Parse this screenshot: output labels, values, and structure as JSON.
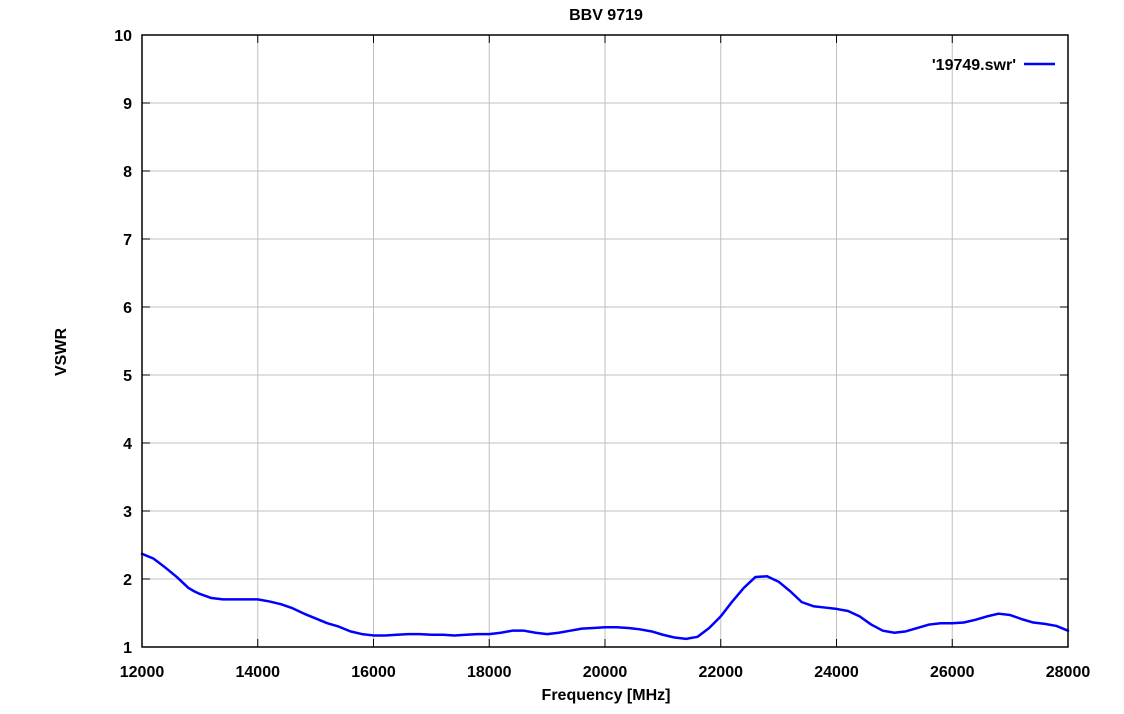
{
  "chart_data": {
    "type": "line",
    "title": "BBV 9719",
    "xlabel": "Frequency [MHz]",
    "ylabel": "VSWR",
    "xlim": [
      12000,
      28000
    ],
    "ylim": [
      1,
      10
    ],
    "x_ticks": [
      12000,
      14000,
      16000,
      18000,
      20000,
      22000,
      24000,
      26000,
      28000
    ],
    "y_ticks": [
      1,
      2,
      3,
      4,
      5,
      6,
      7,
      8,
      9,
      10
    ],
    "x_tick_labels": [
      "12000",
      "14000",
      "16000",
      "18000",
      "20000",
      "22000",
      "24000",
      "26000",
      "28000"
    ],
    "y_tick_labels": [
      "1",
      "2",
      "3",
      "4",
      "5",
      "6",
      "7",
      "8",
      "9",
      "10"
    ],
    "grid": true,
    "legend_position": "top-right",
    "colors": {
      "series": "#0000ff",
      "grid": "#c0c0c0",
      "axis": "#000000"
    },
    "series": [
      {
        "name": "'19749.swr'",
        "x": [
          12000,
          12200,
          12400,
          12600,
          12800,
          12900,
          13000,
          13200,
          13400,
          13600,
          13800,
          14000,
          14200,
          14400,
          14600,
          14800,
          15000,
          15200,
          15400,
          15600,
          15800,
          16000,
          16200,
          16400,
          16600,
          16800,
          17000,
          17200,
          17400,
          17600,
          17800,
          18000,
          18200,
          18400,
          18600,
          18800,
          19000,
          19200,
          19400,
          19600,
          19800,
          20000,
          20200,
          20400,
          20600,
          20800,
          21000,
          21200,
          21400,
          21600,
          21800,
          22000,
          22200,
          22400,
          22600,
          22800,
          23000,
          23200,
          23400,
          23600,
          23800,
          24000,
          24200,
          24400,
          24600,
          24800,
          25000,
          25200,
          25400,
          25600,
          25800,
          26000,
          26200,
          26400,
          26600,
          26800,
          27000,
          27200,
          27400,
          27600,
          27800,
          28000
        ],
        "y": [
          2.37,
          2.3,
          2.17,
          2.03,
          1.87,
          1.82,
          1.78,
          1.72,
          1.7,
          1.7,
          1.7,
          1.7,
          1.67,
          1.63,
          1.57,
          1.49,
          1.42,
          1.35,
          1.3,
          1.23,
          1.19,
          1.17,
          1.17,
          1.18,
          1.19,
          1.19,
          1.18,
          1.18,
          1.17,
          1.18,
          1.19,
          1.19,
          1.21,
          1.24,
          1.24,
          1.21,
          1.19,
          1.21,
          1.24,
          1.27,
          1.28,
          1.29,
          1.29,
          1.28,
          1.26,
          1.23,
          1.18,
          1.14,
          1.12,
          1.15,
          1.28,
          1.45,
          1.67,
          1.87,
          2.03,
          2.04,
          1.96,
          1.82,
          1.66,
          1.6,
          1.58,
          1.56,
          1.53,
          1.45,
          1.33,
          1.24,
          1.21,
          1.23,
          1.28,
          1.33,
          1.35,
          1.35,
          1.36,
          1.4,
          1.45,
          1.49,
          1.47,
          1.41,
          1.36,
          1.34,
          1.31,
          1.24
        ]
      }
    ]
  }
}
